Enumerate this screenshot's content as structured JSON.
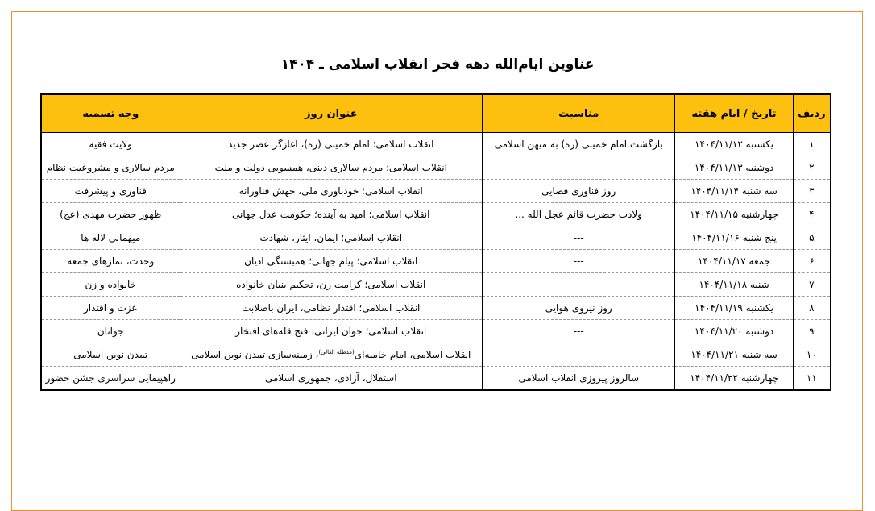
{
  "title": "عناوین ایام‌الله دهه فجر انقلاب اسلامی ـ ۱۴۰۴",
  "headers": [
    "ردیف",
    "تاریخ / ایام هفته",
    "مناسبت",
    "عنوان روز",
    "وجه تسمیه"
  ],
  "rows": [
    {
      "n": "۱",
      "date": "یکشنبه ۱۴۰۴/۱۱/۱۲",
      "occasion": "بازگشت امام خمینی (ره) به میهن اسلامی",
      "title": "انقلاب اسلامی؛ امام خمینی (ره)، آغازگر عصر جدید",
      "naming": "ولایت فقیه"
    },
    {
      "n": "۲",
      "date": "دوشنبه ۱۴۰۴/۱۱/۱۳",
      "occasion": "---",
      "title": "انقلاب اسلامی؛ مردم سالاری دینی، همسویی دولت و ملت",
      "naming": "مردم سالاری و مشروعیت نظام"
    },
    {
      "n": "۳",
      "date": "سه شنبه ۱۴۰۴/۱۱/۱۴",
      "occasion": "روز فناوری فضایی",
      "title": "انقلاب اسلامی؛ خودباوری ملی، جهش فناورانه",
      "naming": "فناوری و پیشرفت"
    },
    {
      "n": "۴",
      "date": "چهارشنبه ۱۴۰۴/۱۱/۱۵",
      "occasion": "ولادت حضرت قائم عجل الله ...",
      "title": "انقلاب اسلامی؛ امید به آینده؛ حکومت عدل جهانی",
      "naming": "ظهور حضرت مهدی (عج)"
    },
    {
      "n": "۵",
      "date": "پنج شنبه ۱۴۰۴/۱۱/۱۶",
      "occasion": "---",
      "title": "انقلاب اسلامی؛ ایمان، ایثار، شهادت",
      "naming": "میهمانی لاله ها"
    },
    {
      "n": "۶",
      "date": "جمعه ۱۴۰۴/۱۱/۱۷",
      "occasion": "---",
      "title": "انقلاب اسلامی؛ پیام جهانی؛ همبستگی ادیان",
      "naming": "وحدت، نمازهای جمعه"
    },
    {
      "n": "۷",
      "date": "شنبه ۱۴۰۴/۱۱/۱۸",
      "occasion": "---",
      "title": "انقلاب اسلامی؛ کرامت زن، تحکیم بنیان خانواده",
      "naming": "خانواده و زن"
    },
    {
      "n": "۸",
      "date": "یکشنبه ۱۴۰۴/۱۱/۱۹",
      "occasion": "روز نیروی هوایی",
      "title": "انقلاب اسلامی؛ اقتدار نظامی، ایران باصلابت",
      "naming": "عزت و اقتدار"
    },
    {
      "n": "۹",
      "date": "دوشنبه ۱۴۰۴/۱۱/۲۰",
      "occasion": "---",
      "title": "انقلاب اسلامی؛ جوان ایرانی، فتح قله‌های افتخار",
      "naming": "جوانان"
    },
    {
      "n": "۱۰",
      "date": "سه شنبه ۱۴۰۴/۱۱/۲۱",
      "occasion": "---",
      "title": "انقلاب اسلامی، امام خامنه‌ای",
      "title_sup": "(مدظله العالی)",
      "title_rest": "، زمینه‌سازی تمدن نوین اسلامی",
      "naming": "تمدن نوین اسلامی"
    },
    {
      "n": "۱۱",
      "date": "چهارشنبه ۱۴۰۴/۱۱/۲۲",
      "occasion": "سالروز پیروزی انقلاب اسلامی",
      "title": "استقلال، آزادی، جمهوری اسلامی",
      "naming": "راهپیمایی سراسری جشن حضور"
    }
  ]
}
